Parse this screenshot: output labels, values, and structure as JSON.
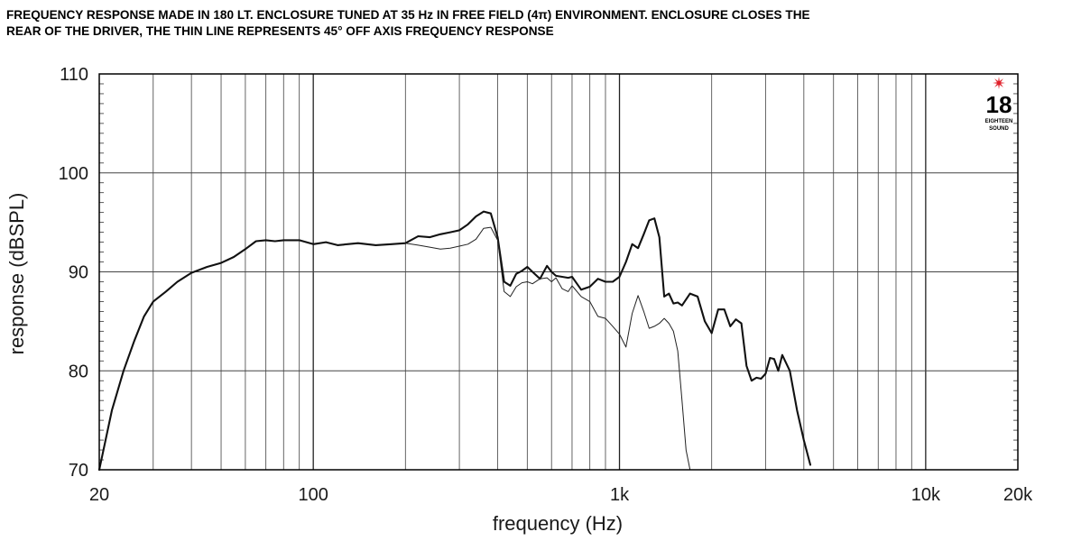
{
  "chart_data": {
    "type": "line",
    "title_line1": "FREQUENCY RESPONSE MADE IN 180 LT. ENCLOSURE TUNED AT 35 Hz IN FREE FIELD (4π) ENVIRONMENT. ENCLOSURE CLOSES THE",
    "title_line2": "REAR OF THE DRIVER, THE THIN LINE REPRESENTS 45° OFF AXIS FREQUENCY RESPONSE",
    "xlabel": "frequency (Hz)",
    "ylabel": "response (dBSPL)",
    "x_scale": "log",
    "xlim": [
      20,
      20000
    ],
    "ylim": [
      70,
      110
    ],
    "grid": true,
    "x_ticks": [
      {
        "value": 20,
        "label": "20"
      },
      {
        "value": 100,
        "label": "100"
      },
      {
        "value": 1000,
        "label": "1k"
      },
      {
        "value": 10000,
        "label": "10k"
      },
      {
        "value": 20000,
        "label": "20k"
      }
    ],
    "y_ticks": [
      {
        "value": 70,
        "label": "70"
      },
      {
        "value": 80,
        "label": "80"
      },
      {
        "value": 90,
        "label": "90"
      },
      {
        "value": 100,
        "label": "100"
      },
      {
        "value": 110,
        "label": "110"
      }
    ],
    "series": [
      {
        "style": "thick",
        "color": "#111111",
        "x": [
          20,
          22,
          24,
          26,
          28,
          30,
          33,
          36,
          40,
          45,
          50,
          55,
          60,
          65,
          70,
          75,
          80,
          90,
          100,
          110,
          120,
          140,
          160,
          180,
          200,
          220,
          240,
          260,
          280,
          300,
          320,
          340,
          360,
          380,
          400,
          420,
          440,
          460,
          480,
          500,
          520,
          550,
          580,
          600,
          620,
          650,
          680,
          700,
          750,
          800,
          850,
          900,
          950,
          1000,
          1050,
          1100,
          1150,
          1200,
          1250,
          1300,
          1350,
          1400,
          1450,
          1500,
          1550,
          1600,
          1700,
          1800,
          1900,
          2000,
          2100,
          2200,
          2300,
          2400,
          2500,
          2600,
          2700,
          2800,
          2900,
          3000,
          3100,
          3200,
          3300,
          3400,
          3600,
          3800,
          4000,
          4200
        ],
        "values": [
          70,
          76,
          80,
          83,
          85.5,
          87,
          88,
          89,
          89.9,
          90.5,
          90.9,
          91.5,
          92.3,
          93.1,
          93.2,
          93.1,
          93.2,
          93.2,
          92.8,
          93.0,
          92.7,
          92.9,
          92.7,
          92.8,
          92.9,
          93.6,
          93.5,
          93.8,
          94.0,
          94.2,
          94.8,
          95.6,
          96.1,
          95.9,
          93.5,
          89.0,
          88.6,
          89.8,
          90.1,
          90.5,
          90.0,
          89.3,
          90.6,
          90.0,
          89.6,
          89.5,
          89.4,
          89.5,
          88.2,
          88.5,
          89.3,
          89.0,
          89.0,
          89.5,
          91.0,
          92.8,
          92.4,
          93.8,
          95.2,
          95.4,
          93.5,
          87.5,
          87.8,
          86.8,
          86.9,
          86.6,
          87.8,
          87.5,
          85.0,
          83.8,
          86.2,
          86.2,
          84.5,
          85.2,
          84.8,
          80.5,
          79.0,
          79.3,
          79.2,
          79.7,
          81.3,
          81.2,
          80.0,
          81.6,
          80.0,
          76.0,
          73.0,
          70.5
        ]
      },
      {
        "style": "thin",
        "color": "#222222",
        "x": [
          200,
          220,
          240,
          260,
          280,
          300,
          320,
          340,
          360,
          380,
          400,
          420,
          440,
          460,
          480,
          500,
          520,
          550,
          580,
          600,
          620,
          650,
          680,
          700,
          750,
          800,
          850,
          900,
          950,
          1000,
          1050,
          1100,
          1150,
          1200,
          1250,
          1300,
          1350,
          1400,
          1450,
          1500,
          1550,
          1600,
          1650,
          1700
        ],
        "values": [
          92.9,
          92.7,
          92.5,
          92.3,
          92.4,
          92.6,
          92.8,
          93.3,
          94.4,
          94.5,
          93.2,
          88.0,
          87.5,
          88.5,
          88.9,
          89.0,
          88.8,
          89.3,
          89.4,
          89.0,
          89.4,
          88.3,
          88.0,
          88.6,
          87.5,
          87.0,
          85.5,
          85.3,
          84.5,
          83.7,
          82.4,
          85.8,
          87.6,
          86.0,
          84.3,
          84.5,
          84.8,
          85.3,
          84.8,
          84.0,
          82.0,
          77.0,
          72.0,
          70.0
        ]
      }
    ]
  },
  "logo": {
    "number": "18",
    "small_text_top": "EIGHTEEN",
    "small_text_bottom": "SOUND",
    "star_color": "#e0202a"
  }
}
